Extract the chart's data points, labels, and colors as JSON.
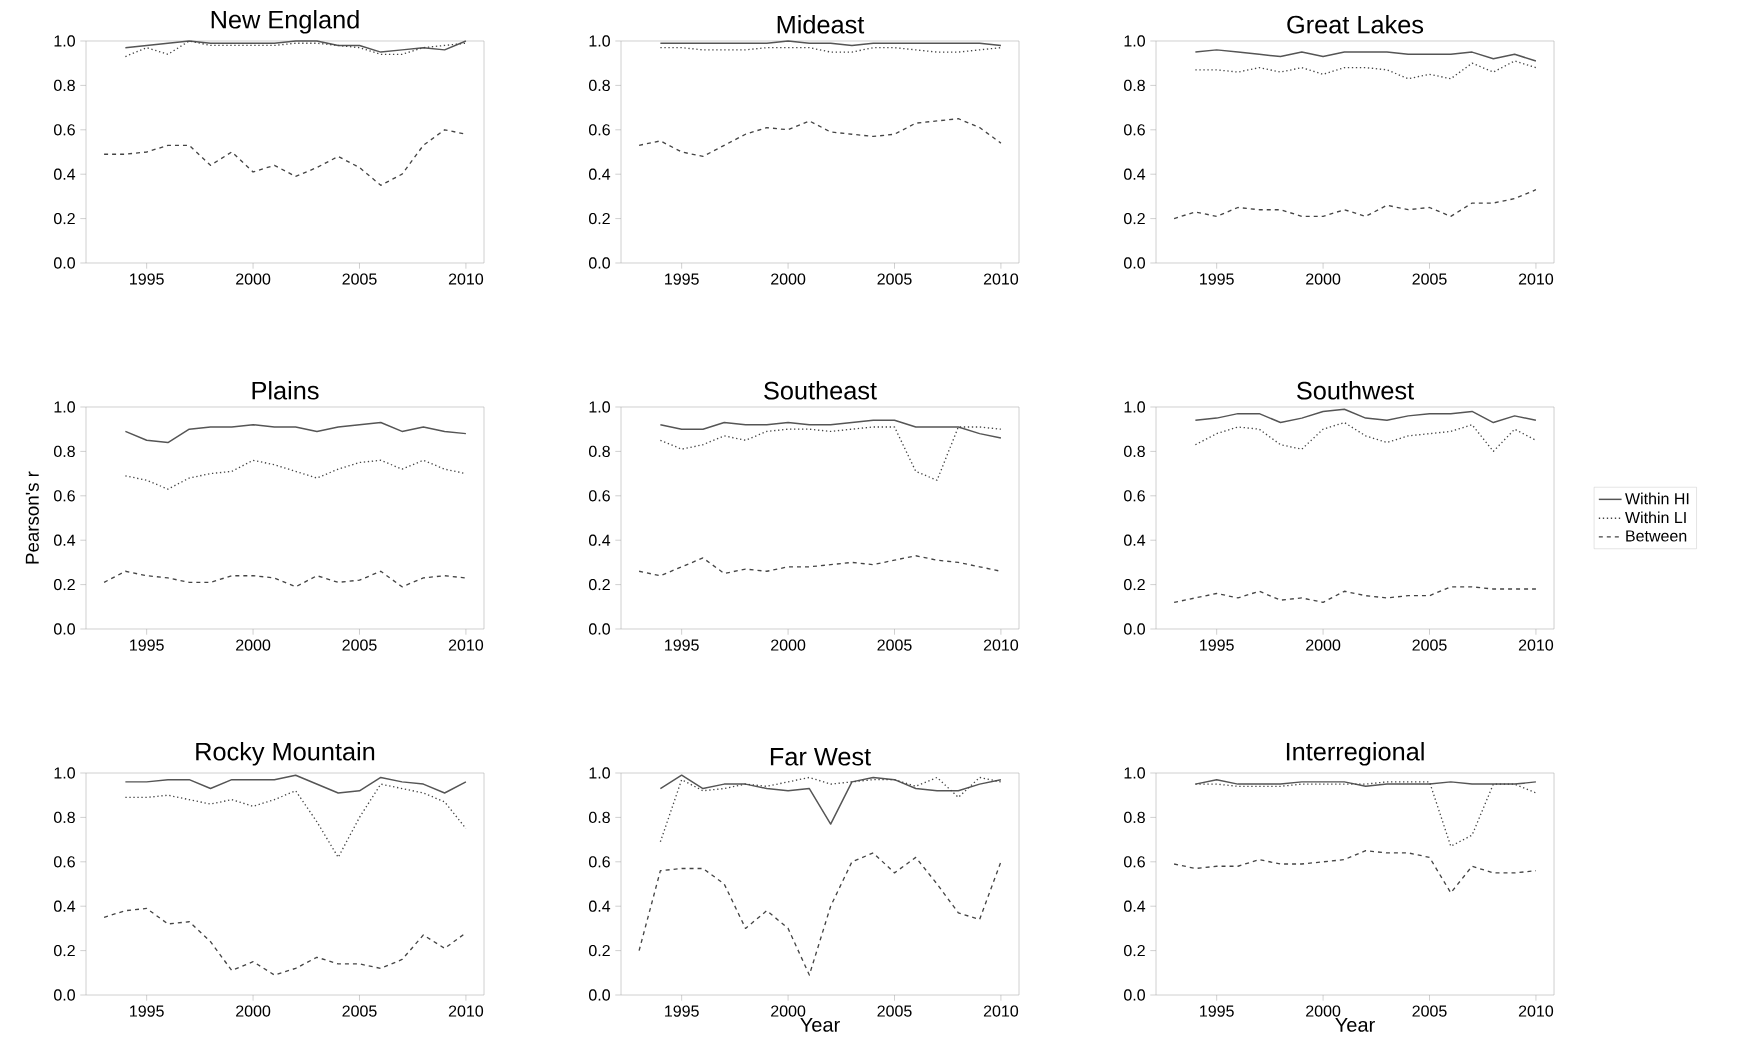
{
  "chart_data": [
    {
      "type": "line",
      "title": "New England",
      "xlim": [
        1992.15,
        2010.85
      ],
      "ylim": [
        0,
        1
      ],
      "xticks": [
        1995,
        2000,
        2005,
        2010
      ],
      "yticks": [
        {
          "value": 0,
          "label": "0.0"
        },
        {
          "value": 0.2,
          "label": "0.2"
        },
        {
          "value": 0.4,
          "label": "0.4"
        },
        {
          "value": 0.6,
          "label": "0.6"
        },
        {
          "value": 0.8,
          "label": "0.8"
        },
        {
          "value": 1,
          "label": "1.0"
        }
      ],
      "series": [
        {
          "color": "#555555",
          "line_style": "solid",
          "x": [
            1994,
            1995,
            1996,
            1997,
            1998,
            1999,
            2000,
            2001,
            2002,
            2003,
            2004,
            2005,
            2006,
            2007,
            2008,
            2009,
            2010
          ],
          "values": [
            0.97,
            0.98,
            0.99,
            1.0,
            0.99,
            0.99,
            0.99,
            0.99,
            1.0,
            1.0,
            0.98,
            0.98,
            0.95,
            0.96,
            0.97,
            0.96,
            1.0
          ]
        },
        {
          "color": "#444444",
          "line_style": "dotted",
          "x": [
            1994,
            1995,
            1996,
            1997,
            1998,
            1999,
            2000,
            2001,
            2002,
            2003,
            2004,
            2005,
            2006,
            2007,
            2008,
            2009,
            2010
          ],
          "values": [
            0.93,
            0.97,
            0.94,
            1.0,
            0.98,
            0.98,
            0.98,
            0.98,
            0.99,
            0.99,
            0.98,
            0.97,
            0.94,
            0.94,
            0.97,
            0.98,
            0.99
          ]
        },
        {
          "color": "#444444",
          "line_style": "dashed",
          "x": [
            1993,
            1994,
            1995,
            1996,
            1997,
            1998,
            1999,
            2000,
            2001,
            2002,
            2003,
            2004,
            2005,
            2006,
            2007,
            2008,
            2009,
            2010
          ],
          "values": [
            0.49,
            0.49,
            0.5,
            0.53,
            0.53,
            0.44,
            0.5,
            0.41,
            0.44,
            0.39,
            0.43,
            0.48,
            0.43,
            0.35,
            0.4,
            0.53,
            0.6,
            0.58
          ]
        }
      ]
    },
    {
      "type": "line",
      "title": "Mideast",
      "xlim": [
        1992.15,
        2010.85
      ],
      "ylim": [
        0,
        1
      ],
      "xticks": [
        1995,
        2000,
        2005,
        2010
      ],
      "yticks": [
        {
          "value": 0,
          "label": "0.0"
        },
        {
          "value": 0.2,
          "label": "0.2"
        },
        {
          "value": 0.4,
          "label": "0.4"
        },
        {
          "value": 0.6,
          "label": "0.6"
        },
        {
          "value": 0.8,
          "label": "0.8"
        },
        {
          "value": 1,
          "label": "1.0"
        }
      ],
      "series": [
        {
          "color": "#555555",
          "line_style": "solid",
          "x": [
            1994,
            1995,
            1996,
            1997,
            1998,
            1999,
            2000,
            2001,
            2002,
            2003,
            2004,
            2005,
            2006,
            2007,
            2008,
            2009,
            2010
          ],
          "values": [
            0.99,
            0.99,
            0.99,
            0.99,
            0.99,
            0.99,
            1.0,
            0.99,
            0.99,
            0.98,
            0.99,
            0.99,
            0.99,
            0.99,
            0.99,
            0.99,
            0.98
          ]
        },
        {
          "color": "#444444",
          "line_style": "dotted",
          "x": [
            1994,
            1995,
            1996,
            1997,
            1998,
            1999,
            2000,
            2001,
            2002,
            2003,
            2004,
            2005,
            2006,
            2007,
            2008,
            2009,
            2010
          ],
          "values": [
            0.97,
            0.97,
            0.96,
            0.96,
            0.96,
            0.97,
            0.97,
            0.97,
            0.95,
            0.95,
            0.97,
            0.97,
            0.96,
            0.95,
            0.95,
            0.96,
            0.97
          ]
        },
        {
          "color": "#444444",
          "line_style": "dashed",
          "x": [
            1993,
            1994,
            1995,
            1996,
            1997,
            1998,
            1999,
            2000,
            2001,
            2002,
            2003,
            2004,
            2005,
            2006,
            2007,
            2008,
            2009,
            2010
          ],
          "values": [
            0.53,
            0.55,
            0.5,
            0.48,
            0.53,
            0.58,
            0.61,
            0.6,
            0.64,
            0.59,
            0.58,
            0.57,
            0.58,
            0.63,
            0.64,
            0.65,
            0.61,
            0.54
          ]
        }
      ]
    },
    {
      "type": "line",
      "title": "Great Lakes",
      "xlim": [
        1992.15,
        2010.85
      ],
      "ylim": [
        0,
        1
      ],
      "xticks": [
        1995,
        2000,
        2005,
        2010
      ],
      "yticks": [
        {
          "value": 0,
          "label": "0.0"
        },
        {
          "value": 0.2,
          "label": "0.2"
        },
        {
          "value": 0.4,
          "label": "0.4"
        },
        {
          "value": 0.6,
          "label": "0.6"
        },
        {
          "value": 0.8,
          "label": "0.8"
        },
        {
          "value": 1,
          "label": "1.0"
        }
      ],
      "series": [
        {
          "color": "#555555",
          "line_style": "solid",
          "x": [
            1994,
            1995,
            1996,
            1997,
            1998,
            1999,
            2000,
            2001,
            2002,
            2003,
            2004,
            2005,
            2006,
            2007,
            2008,
            2009,
            2010
          ],
          "values": [
            0.95,
            0.96,
            0.95,
            0.94,
            0.93,
            0.95,
            0.93,
            0.95,
            0.95,
            0.95,
            0.94,
            0.94,
            0.94,
            0.95,
            0.92,
            0.94,
            0.91
          ]
        },
        {
          "color": "#444444",
          "line_style": "dotted",
          "x": [
            1994,
            1995,
            1996,
            1997,
            1998,
            1999,
            2000,
            2001,
            2002,
            2003,
            2004,
            2005,
            2006,
            2007,
            2008,
            2009,
            2010
          ],
          "values": [
            0.87,
            0.87,
            0.86,
            0.88,
            0.86,
            0.88,
            0.85,
            0.88,
            0.88,
            0.87,
            0.83,
            0.85,
            0.83,
            0.9,
            0.86,
            0.91,
            0.88
          ]
        },
        {
          "color": "#444444",
          "line_style": "dashed",
          "x": [
            1993,
            1994,
            1995,
            1996,
            1997,
            1998,
            1999,
            2000,
            2001,
            2002,
            2003,
            2004,
            2005,
            2006,
            2007,
            2008,
            2009,
            2010
          ],
          "values": [
            0.2,
            0.23,
            0.21,
            0.25,
            0.24,
            0.24,
            0.21,
            0.21,
            0.24,
            0.21,
            0.26,
            0.24,
            0.25,
            0.21,
            0.27,
            0.27,
            0.29,
            0.33
          ]
        }
      ]
    },
    {
      "type": "line",
      "title": "Plains",
      "ylabel": "Pearson's r",
      "xlim": [
        1992.15,
        2010.85
      ],
      "ylim": [
        0,
        1
      ],
      "xticks": [
        1995,
        2000,
        2005,
        2010
      ],
      "yticks": [
        {
          "value": 0,
          "label": "0.0"
        },
        {
          "value": 0.2,
          "label": "0.2"
        },
        {
          "value": 0.4,
          "label": "0.4"
        },
        {
          "value": 0.6,
          "label": "0.6"
        },
        {
          "value": 0.8,
          "label": "0.8"
        },
        {
          "value": 1,
          "label": "1.0"
        }
      ],
      "series": [
        {
          "color": "#555555",
          "line_style": "solid",
          "x": [
            1994,
            1995,
            1996,
            1997,
            1998,
            1999,
            2000,
            2001,
            2002,
            2003,
            2004,
            2005,
            2006,
            2007,
            2008,
            2009,
            2010
          ],
          "values": [
            0.89,
            0.85,
            0.84,
            0.9,
            0.91,
            0.91,
            0.92,
            0.91,
            0.91,
            0.89,
            0.91,
            0.92,
            0.93,
            0.89,
            0.91,
            0.89,
            0.88
          ]
        },
        {
          "color": "#444444",
          "line_style": "dotted",
          "x": [
            1994,
            1995,
            1996,
            1997,
            1998,
            1999,
            2000,
            2001,
            2002,
            2003,
            2004,
            2005,
            2006,
            2007,
            2008,
            2009,
            2010
          ],
          "values": [
            0.69,
            0.67,
            0.63,
            0.68,
            0.7,
            0.71,
            0.76,
            0.74,
            0.71,
            0.68,
            0.72,
            0.75,
            0.76,
            0.72,
            0.76,
            0.72,
            0.7
          ]
        },
        {
          "color": "#444444",
          "line_style": "dashed",
          "x": [
            1993,
            1994,
            1995,
            1996,
            1997,
            1998,
            1999,
            2000,
            2001,
            2002,
            2003,
            2004,
            2005,
            2006,
            2007,
            2008,
            2009,
            2010
          ],
          "values": [
            0.21,
            0.26,
            0.24,
            0.23,
            0.21,
            0.21,
            0.24,
            0.24,
            0.23,
            0.19,
            0.24,
            0.21,
            0.22,
            0.26,
            0.19,
            0.23,
            0.24,
            0.23
          ]
        }
      ]
    },
    {
      "type": "line",
      "title": "Southeast",
      "xlim": [
        1992.15,
        2010.85
      ],
      "ylim": [
        0,
        1
      ],
      "xticks": [
        1995,
        2000,
        2005,
        2010
      ],
      "yticks": [
        {
          "value": 0,
          "label": "0.0"
        },
        {
          "value": 0.2,
          "label": "0.2"
        },
        {
          "value": 0.4,
          "label": "0.4"
        },
        {
          "value": 0.6,
          "label": "0.6"
        },
        {
          "value": 0.8,
          "label": "0.8"
        },
        {
          "value": 1,
          "label": "1.0"
        }
      ],
      "series": [
        {
          "color": "#555555",
          "line_style": "solid",
          "x": [
            1994,
            1995,
            1996,
            1997,
            1998,
            1999,
            2000,
            2001,
            2002,
            2003,
            2004,
            2005,
            2006,
            2007,
            2008,
            2009,
            2010
          ],
          "values": [
            0.92,
            0.9,
            0.9,
            0.93,
            0.92,
            0.92,
            0.93,
            0.92,
            0.92,
            0.93,
            0.94,
            0.94,
            0.91,
            0.91,
            0.91,
            0.88,
            0.86
          ]
        },
        {
          "color": "#444444",
          "line_style": "dotted",
          "x": [
            1994,
            1995,
            1996,
            1997,
            1998,
            1999,
            2000,
            2001,
            2002,
            2003,
            2004,
            2005,
            2006,
            2007,
            2008,
            2009,
            2010
          ],
          "values": [
            0.85,
            0.81,
            0.83,
            0.87,
            0.85,
            0.89,
            0.9,
            0.9,
            0.89,
            0.9,
            0.91,
            0.91,
            0.71,
            0.67,
            0.91,
            0.91,
            0.9
          ]
        },
        {
          "color": "#444444",
          "line_style": "dashed",
          "x": [
            1993,
            1994,
            1995,
            1996,
            1997,
            1998,
            1999,
            2000,
            2001,
            2002,
            2003,
            2004,
            2005,
            2006,
            2007,
            2008,
            2009,
            2010
          ],
          "values": [
            0.26,
            0.24,
            0.28,
            0.32,
            0.25,
            0.27,
            0.26,
            0.28,
            0.28,
            0.29,
            0.3,
            0.29,
            0.31,
            0.33,
            0.31,
            0.3,
            0.28,
            0.26
          ]
        }
      ]
    },
    {
      "type": "line",
      "title": "Southwest",
      "legend": "right",
      "xlim": [
        1992.15,
        2010.85
      ],
      "ylim": [
        0,
        1
      ],
      "xticks": [
        1995,
        2000,
        2005,
        2010
      ],
      "yticks": [
        {
          "value": 0,
          "label": "0.0"
        },
        {
          "value": 0.2,
          "label": "0.2"
        },
        {
          "value": 0.4,
          "label": "0.4"
        },
        {
          "value": 0.6,
          "label": "0.6"
        },
        {
          "value": 0.8,
          "label": "0.8"
        },
        {
          "value": 1,
          "label": "1.0"
        }
      ],
      "series": [
        {
          "name": "Within HI",
          "color": "#555555",
          "line_style": "solid",
          "x": [
            1994,
            1995,
            1996,
            1997,
            1998,
            1999,
            2000,
            2001,
            2002,
            2003,
            2004,
            2005,
            2006,
            2007,
            2008,
            2009,
            2010
          ],
          "values": [
            0.94,
            0.95,
            0.97,
            0.97,
            0.93,
            0.95,
            0.98,
            0.99,
            0.95,
            0.94,
            0.96,
            0.97,
            0.97,
            0.98,
            0.93,
            0.96,
            0.94
          ]
        },
        {
          "name": "Within LI",
          "color": "#444444",
          "line_style": "dotted",
          "x": [
            1994,
            1995,
            1996,
            1997,
            1998,
            1999,
            2000,
            2001,
            2002,
            2003,
            2004,
            2005,
            2006,
            2007,
            2008,
            2009,
            2010
          ],
          "values": [
            0.83,
            0.88,
            0.91,
            0.9,
            0.83,
            0.81,
            0.9,
            0.93,
            0.87,
            0.84,
            0.87,
            0.88,
            0.89,
            0.92,
            0.8,
            0.9,
            0.85
          ]
        },
        {
          "name": "Between",
          "color": "#444444",
          "line_style": "dashed",
          "x": [
            1993,
            1994,
            1995,
            1996,
            1997,
            1998,
            1999,
            2000,
            2001,
            2002,
            2003,
            2004,
            2005,
            2006,
            2007,
            2008,
            2009,
            2010
          ],
          "values": [
            0.12,
            0.14,
            0.16,
            0.14,
            0.17,
            0.13,
            0.14,
            0.12,
            0.17,
            0.15,
            0.14,
            0.15,
            0.15,
            0.19,
            0.19,
            0.18,
            0.18,
            0.18
          ]
        }
      ]
    },
    {
      "type": "line",
      "title": "Rocky Mountain",
      "xlim": [
        1992.15,
        2010.85
      ],
      "ylim": [
        0,
        1
      ],
      "xticks": [
        1995,
        2000,
        2005,
        2010
      ],
      "yticks": [
        {
          "value": 0,
          "label": "0.0"
        },
        {
          "value": 0.2,
          "label": "0.2"
        },
        {
          "value": 0.4,
          "label": "0.4"
        },
        {
          "value": 0.6,
          "label": "0.6"
        },
        {
          "value": 0.8,
          "label": "0.8"
        },
        {
          "value": 1,
          "label": "1.0"
        }
      ],
      "series": [
        {
          "color": "#555555",
          "line_style": "solid",
          "x": [
            1994,
            1995,
            1996,
            1997,
            1998,
            1999,
            2000,
            2001,
            2002,
            2003,
            2004,
            2005,
            2006,
            2007,
            2008,
            2009,
            2010
          ],
          "values": [
            0.96,
            0.96,
            0.97,
            0.97,
            0.93,
            0.97,
            0.97,
            0.97,
            0.99,
            0.95,
            0.91,
            0.92,
            0.98,
            0.96,
            0.95,
            0.91,
            0.96
          ]
        },
        {
          "color": "#444444",
          "line_style": "dotted",
          "x": [
            1994,
            1995,
            1996,
            1997,
            1998,
            1999,
            2000,
            2001,
            2002,
            2003,
            2004,
            2005,
            2006,
            2007,
            2008,
            2009,
            2010
          ],
          "values": [
            0.89,
            0.89,
            0.9,
            0.88,
            0.86,
            0.88,
            0.85,
            0.88,
            0.92,
            0.78,
            0.62,
            0.8,
            0.95,
            0.93,
            0.91,
            0.87,
            0.75
          ]
        },
        {
          "color": "#444444",
          "line_style": "dashed",
          "x": [
            1993,
            1994,
            1995,
            1996,
            1997,
            1998,
            1999,
            2000,
            2001,
            2002,
            2003,
            2004,
            2005,
            2006,
            2007,
            2008,
            2009,
            2010
          ],
          "values": [
            0.35,
            0.38,
            0.39,
            0.32,
            0.33,
            0.24,
            0.11,
            0.15,
            0.09,
            0.12,
            0.17,
            0.14,
            0.14,
            0.12,
            0.16,
            0.27,
            0.21,
            0.28
          ]
        }
      ]
    },
    {
      "type": "line",
      "title": "Far West",
      "xlabel": "Year",
      "xlim": [
        1992.15,
        2010.85
      ],
      "ylim": [
        0,
        1
      ],
      "xticks": [
        1995,
        2000,
        2005,
        2010
      ],
      "yticks": [
        {
          "value": 0,
          "label": "0.0"
        },
        {
          "value": 0.2,
          "label": "0.2"
        },
        {
          "value": 0.4,
          "label": "0.4"
        },
        {
          "value": 0.6,
          "label": "0.6"
        },
        {
          "value": 0.8,
          "label": "0.8"
        },
        {
          "value": 1,
          "label": "1.0"
        }
      ],
      "series": [
        {
          "color": "#555555",
          "line_style": "solid",
          "x": [
            1994,
            1995,
            1996,
            1997,
            1998,
            1999,
            2000,
            2001,
            2002,
            2003,
            2004,
            2005,
            2006,
            2007,
            2008,
            2009,
            2010
          ],
          "values": [
            0.93,
            0.99,
            0.93,
            0.95,
            0.95,
            0.93,
            0.92,
            0.93,
            0.77,
            0.96,
            0.98,
            0.97,
            0.93,
            0.92,
            0.92,
            0.95,
            0.97
          ]
        },
        {
          "color": "#444444",
          "line_style": "dotted",
          "x": [
            1994,
            1995,
            1996,
            1997,
            1998,
            1999,
            2000,
            2001,
            2002,
            2003,
            2004,
            2005,
            2006,
            2007,
            2008,
            2009,
            2010
          ],
          "values": [
            0.69,
            0.97,
            0.92,
            0.93,
            0.95,
            0.94,
            0.96,
            0.98,
            0.95,
            0.96,
            0.97,
            0.97,
            0.94,
            0.98,
            0.89,
            0.98,
            0.96
          ]
        },
        {
          "color": "#444444",
          "line_style": "dashed",
          "x": [
            1993,
            1994,
            1995,
            1996,
            1997,
            1998,
            1999,
            2000,
            2001,
            2002,
            2003,
            2004,
            2005,
            2006,
            2007,
            2008,
            2009,
            2010
          ],
          "values": [
            0.2,
            0.56,
            0.57,
            0.57,
            0.5,
            0.3,
            0.38,
            0.3,
            0.09,
            0.4,
            0.6,
            0.64,
            0.55,
            0.62,
            0.5,
            0.37,
            0.34,
            0.6
          ]
        }
      ]
    },
    {
      "type": "line",
      "title": "Interregional",
      "xlabel": "Year",
      "xlim": [
        1992.15,
        2010.85
      ],
      "ylim": [
        0,
        1
      ],
      "xticks": [
        1995,
        2000,
        2005,
        2010
      ],
      "yticks": [
        {
          "value": 0,
          "label": "0.0"
        },
        {
          "value": 0.2,
          "label": "0.2"
        },
        {
          "value": 0.4,
          "label": "0.4"
        },
        {
          "value": 0.6,
          "label": "0.6"
        },
        {
          "value": 0.8,
          "label": "0.8"
        },
        {
          "value": 1,
          "label": "1.0"
        }
      ],
      "series": [
        {
          "color": "#555555",
          "line_style": "solid",
          "x": [
            1994,
            1995,
            1996,
            1997,
            1998,
            1999,
            2000,
            2001,
            2002,
            2003,
            2004,
            2005,
            2006,
            2007,
            2008,
            2009,
            2010
          ],
          "values": [
            0.95,
            0.97,
            0.95,
            0.95,
            0.95,
            0.96,
            0.96,
            0.96,
            0.94,
            0.95,
            0.95,
            0.95,
            0.96,
            0.95,
            0.95,
            0.95,
            0.96
          ]
        },
        {
          "color": "#444444",
          "line_style": "dotted",
          "x": [
            1994,
            1995,
            1996,
            1997,
            1998,
            1999,
            2000,
            2001,
            2002,
            2003,
            2004,
            2005,
            2006,
            2007,
            2008,
            2009,
            2010
          ],
          "values": [
            0.95,
            0.95,
            0.94,
            0.94,
            0.94,
            0.95,
            0.95,
            0.95,
            0.95,
            0.96,
            0.96,
            0.96,
            0.67,
            0.72,
            0.95,
            0.95,
            0.91
          ]
        },
        {
          "color": "#444444",
          "line_style": "dashed",
          "x": [
            1993,
            1994,
            1995,
            1996,
            1997,
            1998,
            1999,
            2000,
            2001,
            2002,
            2003,
            2004,
            2005,
            2006,
            2007,
            2008,
            2009,
            2010
          ],
          "values": [
            0.59,
            0.57,
            0.58,
            0.58,
            0.61,
            0.59,
            0.59,
            0.6,
            0.61,
            0.65,
            0.64,
            0.64,
            0.62,
            0.46,
            0.58,
            0.55,
            0.55,
            0.56
          ]
        }
      ]
    }
  ]
}
